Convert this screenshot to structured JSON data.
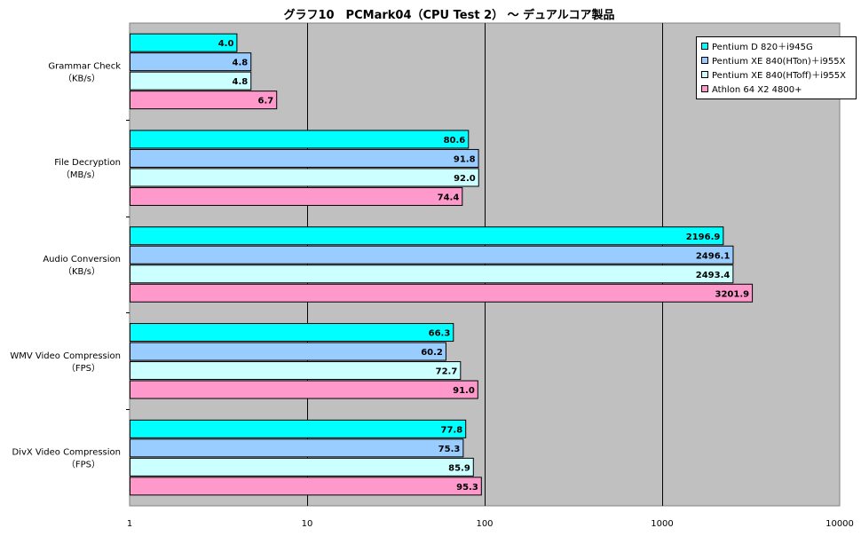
{
  "chart_data": {
    "type": "bar",
    "orientation": "horizontal",
    "title": "グラフ10　PCMark04（CPU Test 2） ～ デュアルコア製品",
    "x_scale": "log",
    "xlim": [
      1,
      10000
    ],
    "x_ticks": [
      "1",
      "10",
      "100",
      "1000",
      "10000"
    ],
    "grid": "vertical major gridlines",
    "plot_background": "#c0c0c0",
    "legend_position": "top-right",
    "categories": [
      {
        "line1": "Grammar Check",
        "line2": "（KB/s）"
      },
      {
        "line1": "File Decryption",
        "line2": "（MB/s）"
      },
      {
        "line1": "Audio Conversion",
        "line2": "（KB/s）"
      },
      {
        "line1": "WMV Video Compression",
        "line2": "（FPS）"
      },
      {
        "line1": "DivX Video Compression",
        "line2": "（FPS）"
      }
    ],
    "series": [
      {
        "name": "Pentium D 820＋i945G",
        "color": "#00ffff",
        "values": [
          4.0,
          80.6,
          2196.9,
          66.3,
          77.8
        ],
        "labels": [
          "4.0",
          "80.6",
          "2196.9",
          "66.3",
          "77.8"
        ]
      },
      {
        "name": "Pentium XE 840(HTon)＋i955X",
        "color": "#99ccff",
        "values": [
          4.8,
          91.8,
          2496.1,
          60.2,
          75.3
        ],
        "labels": [
          "4.8",
          "91.8",
          "2496.1",
          "60.2",
          "75.3"
        ]
      },
      {
        "name": "Pentium XE 840(HToff)＋i955X",
        "color": "#ccffff",
        "values": [
          4.8,
          92.0,
          2493.4,
          72.7,
          85.9
        ],
        "labels": [
          "4.8",
          "92.0",
          "2493.4",
          "72.7",
          "85.9"
        ]
      },
      {
        "name": "Athlon 64 X2 4800+",
        "color": "#ff99cc",
        "values": [
          6.7,
          74.4,
          3201.9,
          91.0,
          95.3
        ],
        "labels": [
          "6.7",
          "74.4",
          "3201.9",
          "91.0",
          "95.3"
        ]
      }
    ]
  }
}
